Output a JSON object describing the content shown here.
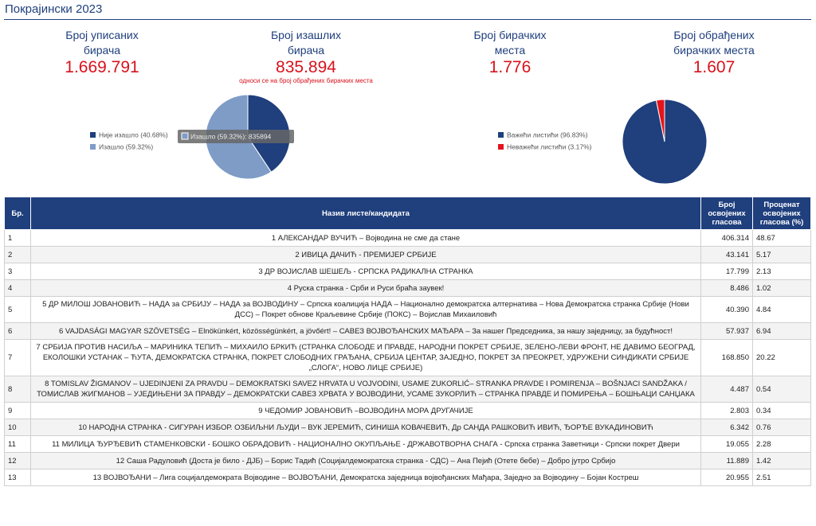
{
  "header": {
    "title": "Покрајински 2023"
  },
  "stats": [
    {
      "label": "Број уписаних бирача",
      "value": "1.669.791"
    },
    {
      "label": "Број изашлих бирача",
      "value": "835.894",
      "note": "односи се на број обрађених бирачких места"
    },
    {
      "label": "Број бирачких места",
      "value": "1.776"
    },
    {
      "label": "Број обрађених бирачких места",
      "value": "1.607"
    }
  ],
  "pies": [
    {
      "slices": [
        {
          "label": "Није изашло (40.68%)",
          "value": 40.68,
          "color": "#1f3f7d"
        },
        {
          "label": "Изашло (59.32%)",
          "value": 59.32,
          "color": "#7f9cc7"
        }
      ],
      "tooltip": "Изашло (59.32%): 835894"
    },
    {
      "slices": [
        {
          "label": "Важећи листићи (96.83%)",
          "value": 96.83,
          "color": "#1f3f7d"
        },
        {
          "label": "Неважећи листићи (3.17%)",
          "value": 3.17,
          "color": "#e3141b"
        }
      ]
    }
  ],
  "table": {
    "headers": [
      "Бр.",
      "Назив листе/кандидата",
      "Број освојених гласова",
      "Проценат освојених гласова (%)"
    ],
    "rows": [
      [
        "1",
        "1 АЛЕКСАНДАР ВУЧИЋ – Војводина не сме да стане",
        "406.314",
        "48.67"
      ],
      [
        "2",
        "2 ИВИЦА ДАЧИЋ - ПРЕМИЈЕР СРБИЈЕ",
        "43.141",
        "5.17"
      ],
      [
        "3",
        "3 ДР ВОЈИСЛАВ ШЕШЕЉ - СРПСКА РАДИКАЛНА СТРАНКА",
        "17.799",
        "2.13"
      ],
      [
        "4",
        "4 Руска странка - Срби и Руси браћа заувек!",
        "8.486",
        "1.02"
      ],
      [
        "5",
        "5 ДР МИЛОШ ЈОВАНОВИЋ – НАДА за СРБИЈУ – НАДА за ВОЈВОДИНУ – Српска коалиција НАДА – Национално демократска алтернатива – Нова Демократска странка Србије (Нови ДСС) – Покрет обнове Краљевине Србије (ПОКС) – Војислав Михаиловић",
        "40.390",
        "4.84"
      ],
      [
        "6",
        "6 VAJDASÁGI MAGYAR SZÖVETSÉG – Elnökünkért, közösségünkért, a jövőért! – САВЕЗ ВОЈВОЂАНСКИХ МАЂАРА – За нашег Председника, за нашу заједницу, за будућност!",
        "57.937",
        "6.94"
      ],
      [
        "7",
        "7 СРБИЈА ПРОТИВ НАСИЉА – МАРИНИКА ТЕПИЋ – МИХАИЛО БРКИЋ (СТРАНКА СЛОБОДЕ И ПРАВДЕ, НАРОДНИ ПОКРЕТ СРБИЈЕ, ЗЕЛЕНО-ЛЕВИ ФРОНТ, НЕ ДАВИМО БЕОГРАД, ЕКОЛОШКИ УСТАНАК – ЋУТА, ДЕМОКРАТСКА СТРАНКА, ПОКРЕТ СЛОБОДНИХ ГРАЂАНА, СРБИЈА ЦЕНТАР, ЗАЈЕДНО, ПОКРЕТ ЗА ПРЕОКРЕТ, УДРУЖЕНИ СИНДИКАТИ СРБИЈЕ „СЛОГА“, НОВО ЛИЦЕ СРБИЈЕ)",
        "168.850",
        "20.22"
      ],
      [
        "8",
        "8 TOMISLAV ŽIGMANOV – UJEDINJENI ZA PRAVDU – DEMOKRATSKI SAVEZ HRVATA U VOJVODINI, USAME ZUKORLIĆ– STRANKA PRAVDE I POMIRENJA – BOŠNJACI SANDŽAKA / ТОМИСЛАВ ЖИГМАНОВ – УЈЕДИЊЕНИ ЗА ПРАВДУ – ДЕМОКРАТСКИ САВЕЗ ХРВАТА У ВОЈВОДИНИ, УСАМЕ ЗУКОРЛИЋ – СТРАНКА ПРАВДЕ И ПОМИРЕЊА – БОШЊАЦИ САНЏАКА",
        "4.487",
        "0.54"
      ],
      [
        "9",
        "9 ЧЕДОМИР ЈОВАНОВИЋ –ВОЈВОДИНА МОРА ДРУГАЧИЈЕ",
        "2.803",
        "0.34"
      ],
      [
        "10",
        "10 НАРОДНА СТРАНКА - СИГУРАН ИЗБОР. ОЗБИЉНИ ЉУДИ – ВУК ЈЕРЕМИЋ, СИНИША КОВАЧЕВИЋ, Др САНДА РАШКОВИЋ ИВИЋ, ЂОРЂЕ ВУКАДИНОВИЋ",
        "6.342",
        "0.76"
      ],
      [
        "11",
        "11 МИЛИЦА ЂУРЂЕВИЋ СТАМЕНКОВСКИ - БОШКО ОБРАДОВИЋ - НАЦИОНАЛНО ОКУПЉАЊЕ - ДРЖАВОТВОРНА СНАГА - Српска странка Заветници - Српски покрет Двери",
        "19.055",
        "2.28"
      ],
      [
        "12",
        "12 Саша Радуловић (Доста је било - ДЈБ) – Борис Тадић (Социјалдемократска странка - СДС) – Ана Пејић (Отете бебе) – Добро јутро Србијо",
        "11.889",
        "1.42"
      ],
      [
        "13",
        "13 ВОЈВОЂАНИ – Лига социјалдемократа Војводине – ВОЈВОЂАНИ, Демократска заједница војвођанских Мађара, Заједно за Војводину – Бојан Костреш",
        "20.955",
        "2.51"
      ]
    ]
  }
}
